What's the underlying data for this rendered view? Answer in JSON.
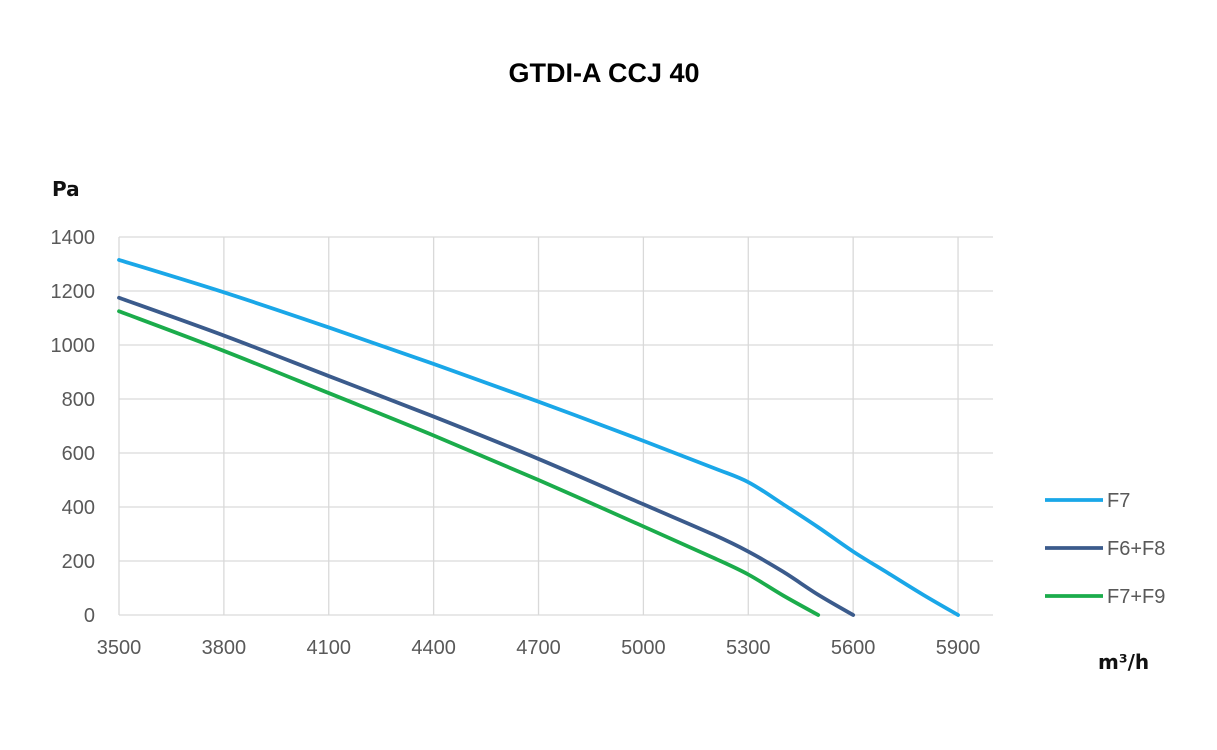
{
  "chart_data": {
    "type": "line",
    "title": "GTDI-A CCJ 40",
    "ylabel": "Pa",
    "xlabel": "m³/h",
    "xlim": [
      3500,
      6000
    ],
    "ylim": [
      0,
      1400
    ],
    "x_ticks": [
      3500,
      3800,
      4100,
      4400,
      4700,
      5000,
      5300,
      5600,
      5900
    ],
    "y_ticks": [
      0,
      200,
      400,
      600,
      800,
      1000,
      1200,
      1400
    ],
    "grid": true,
    "legend_position": "right",
    "series": [
      {
        "name": "F7",
        "color": "#1aa7e8",
        "points": [
          [
            3500,
            1315
          ],
          [
            3800,
            1195
          ],
          [
            4100,
            1065
          ],
          [
            4400,
            930
          ],
          [
            4700,
            790
          ],
          [
            5000,
            645
          ],
          [
            5200,
            545
          ],
          [
            5300,
            492
          ],
          [
            5400,
            410
          ],
          [
            5500,
            325
          ],
          [
            5600,
            235
          ],
          [
            5700,
            155
          ],
          [
            5800,
            75
          ],
          [
            5900,
            0
          ]
        ]
      },
      {
        "name": "F6+F8",
        "color": "#3b5b8c",
        "points": [
          [
            3500,
            1175
          ],
          [
            3800,
            1035
          ],
          [
            4100,
            885
          ],
          [
            4400,
            735
          ],
          [
            4700,
            578
          ],
          [
            5000,
            410
          ],
          [
            5200,
            298
          ],
          [
            5300,
            235
          ],
          [
            5400,
            160
          ],
          [
            5500,
            75
          ],
          [
            5600,
            0
          ]
        ]
      },
      {
        "name": "F7+F9",
        "color": "#1bac4b",
        "points": [
          [
            3500,
            1125
          ],
          [
            3800,
            978
          ],
          [
            4100,
            822
          ],
          [
            4400,
            665
          ],
          [
            4700,
            500
          ],
          [
            5000,
            328
          ],
          [
            5200,
            212
          ],
          [
            5300,
            150
          ],
          [
            5400,
            72
          ],
          [
            5500,
            0
          ]
        ]
      }
    ]
  }
}
